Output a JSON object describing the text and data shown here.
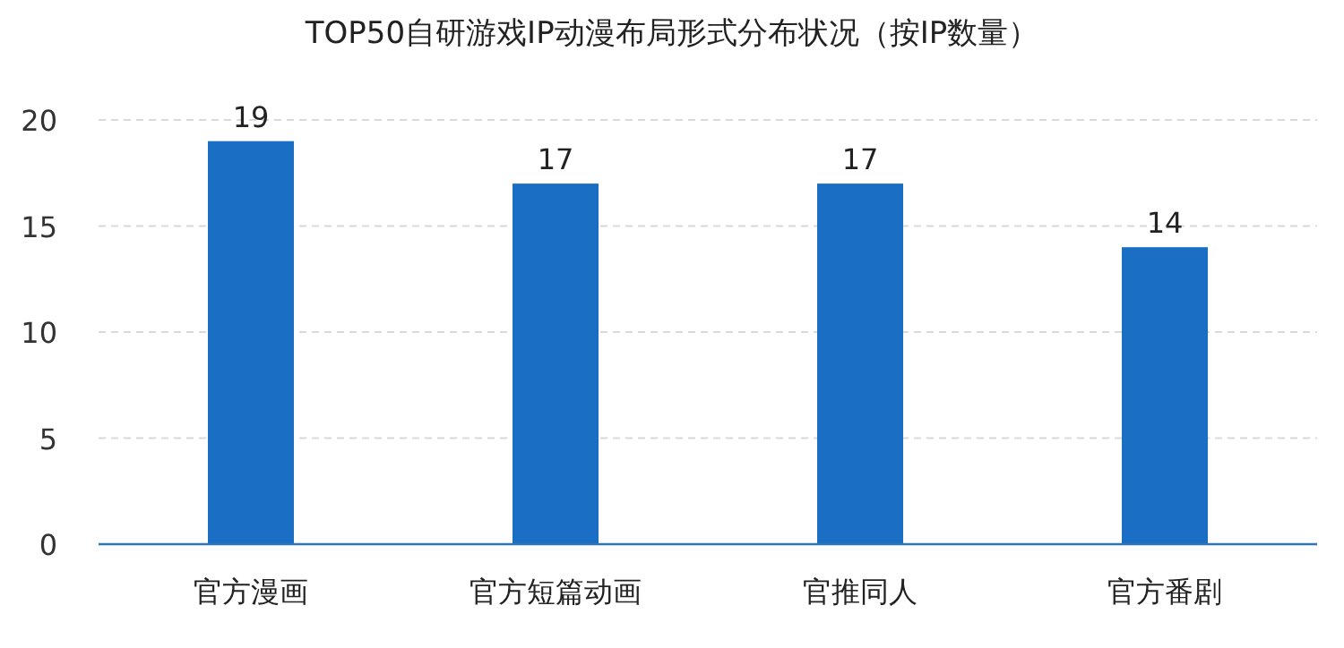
{
  "chart_data": {
    "type": "bar",
    "title": "TOP50自研游戏IP动漫布局形式分布状况（按IP数量）",
    "categories": [
      "官方漫画",
      "官方短篇动画",
      "官推同人",
      "官方番剧"
    ],
    "values": [
      19,
      17,
      17,
      14
    ],
    "color": "#1a6ec4",
    "ylim": [
      0,
      20
    ],
    "yticks": [
      0,
      5,
      10,
      15,
      20
    ],
    "grid": "y",
    "data_labels": true
  }
}
